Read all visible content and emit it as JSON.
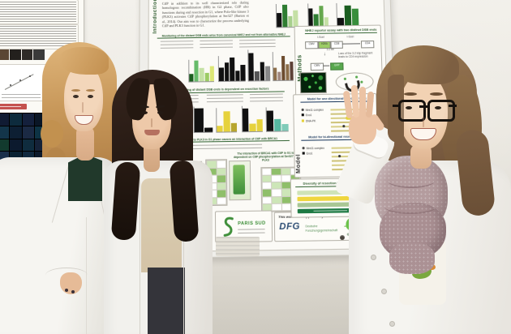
{
  "palette": {
    "wall_top": "#f2f0ea",
    "wall_bottom": "#d2cec4",
    "poster_bg": "#fbfaf6",
    "heading_green": "#2f5d2f",
    "accent_yellow": "#e6d23c",
    "accent_teal": "#56b8a0",
    "dfg_blue": "#2e4e74",
    "logo_green": "#58a83e",
    "scarf_mauve": "#b49c9e",
    "lab_coat": "#f3f2ee"
  },
  "left_poster": {
    "strip_cells": [
      "#5a4634",
      "#23201d",
      "#2e2b28",
      "#3a3a3a"
    ],
    "grid_cells": [
      "#101b33",
      "#0d2b3d",
      "#14203c",
      "#0a1626",
      "#13354a",
      "#0d1f33",
      "#1b2a44",
      "#0e3344",
      "#123a2e",
      "#0c1a2e",
      "#0f2c3e",
      "#152238",
      "#1a2f4a",
      "#0b2233",
      "#11293f",
      "#0d1a2c"
    ],
    "highlight_color": "#c4524e"
  },
  "main_poster": {
    "intro": {
      "label": "Introduction",
      "text": "CtIP in addition to its well characterized role during homologous recombination (HR) in G2 phase, CtIP also functions during end resection in G1, where Polo-like kinase 3 (PLK3) activates CtIP phosphorylation at Ser327 (Barton et al., 2014). Our aim was to characterize the process underlying CtIP and PLK3 function in G1."
    },
    "sections": {
      "s1": "Monitoring of the distant DSB ends arise from canonical NHEJ and not from alternative NHEJ",
      "s2": "Monitoring of distant DSB ends is dependent on resection factors",
      "s3": "Binding of CtIP to PLK3 in G1 phase causes an interaction of CtIP with BRCA1",
      "s4": "The interaction of BRCA1 with CtIP in G1 is dependent on CtIP phosphorylation at Ser327 by PLK3"
    },
    "methods": {
      "label": "Methods",
      "heading": "NHEJ reporter assay with two distinct DSB ends",
      "box_cmv": "CMV",
      "box_h2kk": "H2Kk",
      "box_cd8": "CD8",
      "box_cd4": "CD4",
      "box_gfp": "GFP",
      "iscei": "I-SceI",
      "size": "3.2 kb",
      "note": "Loss of the 3.2 kbp fragment leads to CD4 expression"
    },
    "model": {
      "label": "Model",
      "heading_g1": "Model for one directional resection in G1",
      "heading_g2": "Model for bi-directional resection in G2",
      "legend": [
        "Mre11 complex",
        "Exo1",
        "DNA-PK"
      ]
    },
    "diversity": {
      "heading": "Diversity of resection in G1 phase",
      "bars": [
        [
          "#cfe3b8",
          96
        ],
        [
          "#efd63e",
          96
        ],
        [
          "#a9c795",
          96
        ],
        [
          "#1e7a44",
          96
        ]
      ]
    },
    "funding": {
      "supported": "This work was supported by",
      "dfg": "DFG",
      "dfg_name_1": "Deutsche",
      "dfg_name_2": "Forschungsgemeinschaft",
      "grk": "GRK 1657"
    },
    "affiliation": {
      "paris_sud": "PARIS SUD"
    },
    "charts": {
      "top1": [
        [
          60,
          "#111111"
        ],
        [
          95,
          "#2f7d32"
        ],
        [
          45,
          "#a8d08d"
        ],
        [
          70,
          "#c5e0a5"
        ]
      ],
      "top2": [
        [
          80,
          "#111111"
        ],
        [
          55,
          "#2f7d32"
        ],
        [
          90,
          "#66a84e"
        ],
        [
          40,
          "#c5e0a5"
        ]
      ],
      "top3": [
        [
          35,
          "#111111"
        ],
        [
          90,
          "#1b5e20"
        ],
        [
          75,
          "#388e3c"
        ]
      ],
      "c1": [
        [
          35,
          "#1b5e20"
        ],
        [
          95,
          "#66bb6a"
        ],
        [
          60,
          "#c5e1a5"
        ],
        [
          40,
          "#9ccc65"
        ],
        [
          70,
          "#dce775"
        ]
      ],
      "c2": [
        [
          55,
          "#111111"
        ],
        [
          75,
          "#111111"
        ],
        [
          95,
          "#111111"
        ],
        [
          40,
          "#111111"
        ],
        [
          62,
          "#111111"
        ]
      ],
      "c3": [
        [
          90,
          "#111111"
        ],
        [
          30,
          "#555555"
        ],
        [
          60,
          "#111111"
        ],
        [
          45,
          "#888888"
        ]
      ],
      "c4": [
        [
          45,
          "#8d6e4a"
        ],
        [
          30,
          "#a1887f"
        ],
        [
          85,
          "#6d4c2f"
        ],
        [
          55,
          "#8d6e4a"
        ],
        [
          65,
          "#5d4037"
        ]
      ],
      "d1": [
        [
          95,
          "#111111"
        ],
        [
          18,
          "#111111"
        ]
      ],
      "d2": [
        [
          25,
          "#e6d23c"
        ],
        [
          85,
          "#e6d23c"
        ],
        [
          35,
          "#b8a62e"
        ]
      ],
      "d3": [
        [
          90,
          "#111111"
        ],
        [
          30,
          "#e6d23c"
        ],
        [
          48,
          "#e6d23c"
        ]
      ],
      "d4": [
        [
          85,
          "#111111"
        ],
        [
          50,
          "#56b8a0"
        ],
        [
          30,
          "#7fcbb8"
        ]
      ]
    },
    "blots": {
      "b1": [
        "#ffffff",
        "#cde6b8",
        "#ffffff",
        "#8fbf6a",
        "#ffffff",
        "#ffffff",
        "#cde6b8",
        "#ffffff",
        "#8fbf6a",
        "#cde6b8",
        "#ffffff",
        "#8fbf6a",
        "#ffffff",
        "#cde6b8",
        "#ffffff",
        "#ffffff",
        "#8fbf6a",
        "#ffffff",
        "#cde6b8",
        "#ffffff"
      ],
      "b2": [
        "#cde6b8",
        "#ffffff",
        "#8fbf6a",
        "#cde6b8",
        "#ffffff",
        "#8fbf6a",
        "#ffffff",
        "#cde6b8",
        "#ffffff",
        "#8fbf6a",
        "#cde6b8",
        "#ffffff"
      ],
      "b3": [
        "#ffffff",
        "#8fbf6a",
        "#cde6b8",
        "#ffffff",
        "#cde6b8",
        "#ffffff",
        "#ffffff",
        "#8fbf6a",
        "#ffffff",
        "#cde6b8",
        "#8fbf6a",
        "#ffffff",
        "#8fbf6a",
        "#ffffff",
        "#cde6b8",
        "#ffffff",
        "#ffffff",
        "#cde6b8",
        "#8fbf6a",
        "#ffffff",
        "#cde6b8",
        "#ffffff",
        "#ffffff",
        "#8fbf6a"
      ]
    }
  }
}
